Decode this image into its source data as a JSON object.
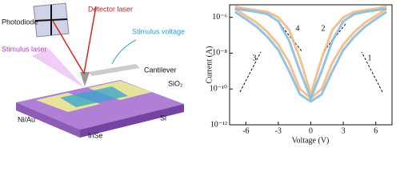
{
  "diagram": {
    "photodiode": "Photodiode",
    "detector_laser": "Detector laser",
    "stimulus_voltage": "Stimulus voltage",
    "stimulus_laser": "Stimulus laser",
    "cantilever": "Cantilever",
    "sio2": "SiO₂",
    "niau": "Ni/Au",
    "inse": "InSe",
    "si": "Si"
  },
  "chart_data": {
    "type": "line",
    "x_label": "Voltage (V)",
    "y_label": "Current (A)",
    "log_y": true,
    "x": [
      -7,
      -6,
      -5,
      -4,
      -3,
      -2,
      -1,
      0,
      1,
      2,
      3,
      4,
      5,
      6,
      7
    ],
    "series": [
      {
        "color": "#f2b67a",
        "values": [
          4e-06,
          3e-06,
          2.5e-06,
          2e-06,
          1e-06,
          2e-07,
          5e-09,
          5e-11,
          5e-09,
          2e-07,
          1e-06,
          2e-06,
          2.5e-06,
          3e-06,
          4e-06
        ]
      },
      {
        "color": "#f2b67a",
        "values": [
          3e-06,
          1.2e-06,
          5e-07,
          1.5e-07,
          3e-08,
          3e-09,
          1e-10,
          3e-11,
          1e-10,
          3e-09,
          3e-08,
          1.5e-07,
          5e-07,
          1.2e-06,
          3e-06
        ]
      },
      {
        "color": "#7fb8dc",
        "values": [
          3e-06,
          2.5e-06,
          2e-06,
          1.5e-06,
          6e-07,
          5e-08,
          1e-09,
          3e-11,
          1e-09,
          5e-08,
          6e-07,
          1.5e-06,
          2e-06,
          2.5e-06,
          3e-06
        ]
      },
      {
        "color": "#7fb8dc",
        "values": [
          2e-06,
          8e-07,
          3e-07,
          8e-08,
          1.5e-08,
          1e-09,
          5e-11,
          2e-11,
          5e-11,
          1e-09,
          1.5e-08,
          8e-08,
          3e-07,
          8e-07,
          2e-06
        ]
      }
    ],
    "xlim": [
      -7.5,
      7.5
    ],
    "xticks": [
      -6,
      -3,
      0,
      3,
      6
    ],
    "ylim": [
      1e-12,
      5e-06
    ],
    "yticks": [
      {
        "value": 1e-12,
        "label": "10⁻¹²"
      },
      {
        "value": 1e-10,
        "label": "10⁻¹⁰"
      },
      {
        "value": 1e-08,
        "label": "10⁻⁸"
      },
      {
        "value": 1e-06,
        "label": "10⁻⁶"
      }
    ],
    "annotations": [
      "1",
      "2",
      "3",
      "4"
    ]
  }
}
